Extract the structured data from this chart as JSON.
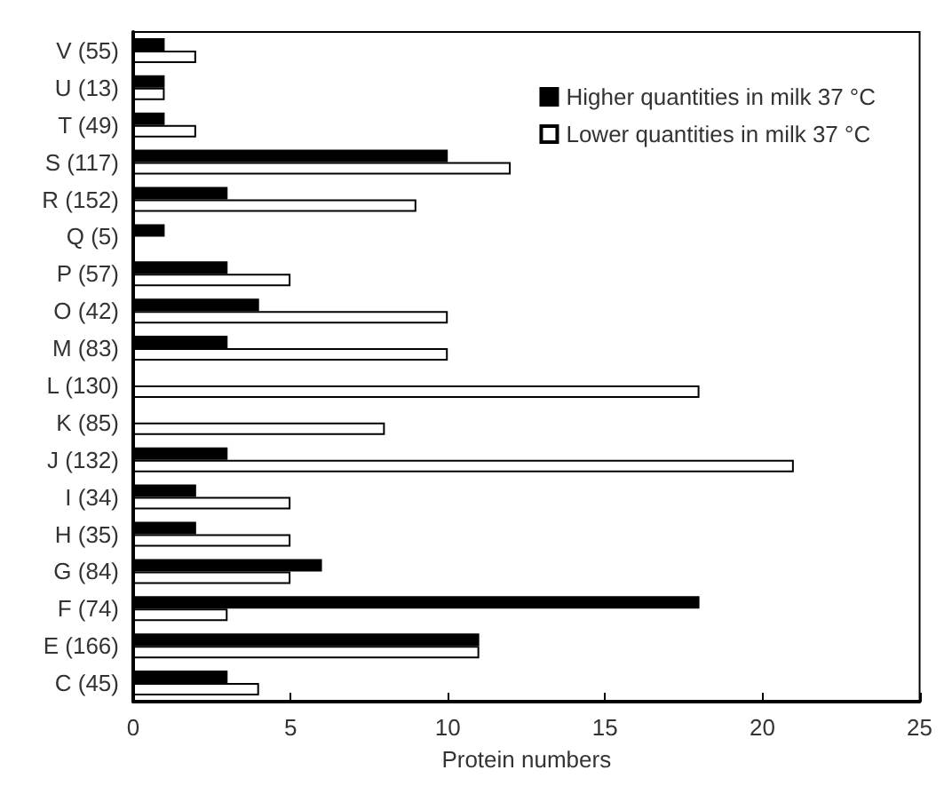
{
  "chart_data": {
    "type": "bar",
    "orientation": "horizontal",
    "xlabel": "Protein numbers",
    "categories": [
      "V (55)",
      "U (13)",
      "T (49)",
      "S (117)",
      "R (152)",
      "Q (5)",
      "P (57)",
      "O (42)",
      "M (83)",
      "L (130)",
      "K (85)",
      "J (132)",
      "I (34)",
      "H (35)",
      "G (84)",
      "F (74)",
      "E (166)",
      "C (45)"
    ],
    "series": [
      {
        "name": "Higher quantities in milk 37 °C",
        "color": "#000000",
        "values": [
          1,
          1,
          1,
          10,
          3,
          1,
          3,
          4,
          3,
          0,
          0,
          3,
          2,
          2,
          6,
          18,
          11,
          3
        ]
      },
      {
        "name": "Lower quantities in milk 37 °C",
        "color": "#ffffff",
        "values": [
          2,
          1,
          2,
          12,
          9,
          0,
          5,
          10,
          10,
          18,
          8,
          21,
          5,
          5,
          5,
          3,
          11,
          4
        ]
      }
    ],
    "xlim": [
      0,
      25
    ],
    "xticks": [
      0,
      5,
      10,
      15,
      20,
      25
    ],
    "grid": false,
    "legend": "top right"
  }
}
